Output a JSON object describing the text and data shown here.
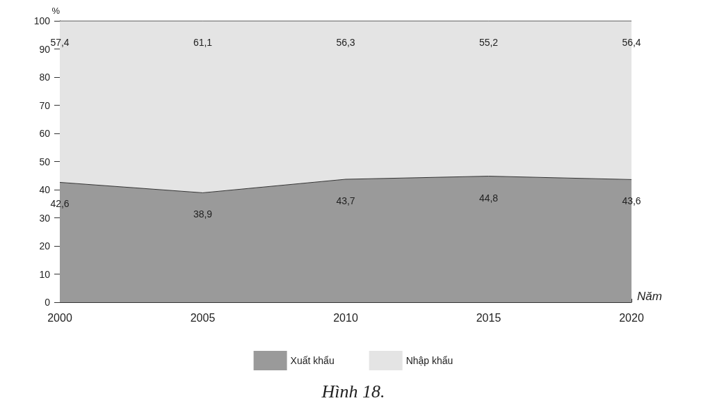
{
  "chart_data": {
    "type": "area",
    "title": "Hình 18.",
    "xlabel": "Năm",
    "ylabel": "%",
    "categories": [
      "2000",
      "2005",
      "2010",
      "2015",
      "2020"
    ],
    "stacked": true,
    "legend": "bottom",
    "grid": false,
    "marker": "none",
    "ylim": [
      0,
      100
    ],
    "yticks": [
      0,
      10,
      20,
      30,
      40,
      50,
      60,
      70,
      80,
      90,
      100
    ],
    "series": [
      {
        "name": "Xuất khẩu",
        "color": "#9a9a9a",
        "values": [
          42.6,
          38.9,
          43.7,
          44.8,
          43.6
        ],
        "value_labels": [
          "42,6",
          "38,9",
          "43,7",
          "44,8",
          "43,6"
        ]
      },
      {
        "name": "Nhập khẩu",
        "color": "#e4e4e4",
        "values": [
          57.4,
          61.1,
          56.3,
          55.2,
          56.4
        ],
        "value_labels": [
          "57,4",
          "61,1",
          "56,3",
          "55,2",
          "56,4"
        ]
      }
    ]
  }
}
